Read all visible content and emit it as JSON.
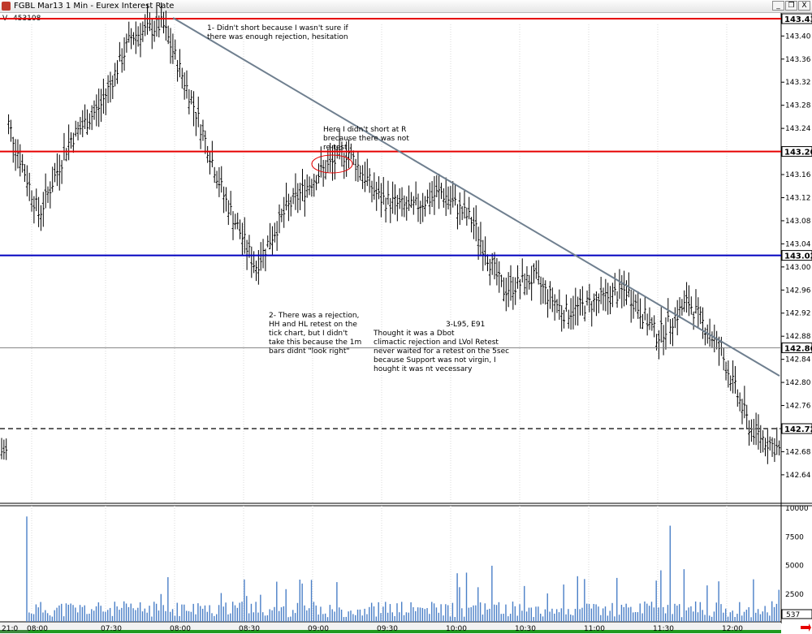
{
  "window": {
    "title": "FGBL Mar13 1 Min - Eurex Interest Rate",
    "minimize": "_",
    "restore": "❐",
    "close": "X",
    "indicator_label": "V",
    "indicator_value": "453108"
  },
  "price_axis": {
    "ticks": [
      "143.40",
      "143.36",
      "143.32",
      "143.28",
      "143.24",
      "143.16",
      "143.12",
      "143.08",
      "143.04",
      "143.00",
      "142.96",
      "142.92",
      "142.88",
      "142.84",
      "142.80",
      "142.76",
      "142.68",
      "142.64"
    ],
    "level_labels": [
      "143.43",
      "143.20",
      "143.02",
      "142.86",
      "142.72"
    ]
  },
  "volume_axis": {
    "ticks": [
      "10000",
      "7500",
      "5000",
      "2500"
    ],
    "current": "537"
  },
  "time_axis": {
    "first": "21:0",
    "ticks": [
      "08:00",
      "07:30",
      "08:00",
      "08:30",
      "09:00",
      "09:30",
      "10:00",
      "10:30",
      "11:00",
      "11:30",
      "12:00"
    ]
  },
  "annotations": [
    "1- Didn't short because I wasn't sure if\nthere was enough rejection, hesitation",
    "Here I didn't short at R\nbrecause there was not\nre-test",
    "2- There was a rejection,\nHH and HL retest on the\ntick chart, but I didn't\ntake this because the 1m\nbars didnt \"look right\"",
    "3-L95, E91",
    "Thought it was a Dbot\nclimactic rejection and LVol Retest\nnever waited for a retest on the 5sec\nbecause Support was not virgin, I\nhought it was nt vecessary"
  ],
  "colors": {
    "resistance": "#e60000",
    "support": "#0000c0",
    "trendline": "#6f7f8f",
    "volume": "#4a7fc7",
    "bars": "#000000"
  },
  "chart_data": {
    "type": "line",
    "title": "",
    "xlabel": "",
    "ylabel": "",
    "ylim": [
      142.62,
      143.44
    ],
    "x": [
      "07:00",
      "07:15",
      "07:30",
      "07:45",
      "08:00",
      "08:05",
      "08:15",
      "08:30",
      "08:40",
      "08:50",
      "09:00",
      "09:10",
      "09:20",
      "09:30",
      "09:45",
      "10:00",
      "10:15",
      "10:30",
      "10:45",
      "11:00",
      "11:15",
      "11:30",
      "11:40",
      "11:50",
      "12:00",
      "12:15"
    ],
    "series": [
      {
        "name": "",
        "values": [
          143.25,
          143.09,
          143.22,
          143.28,
          143.4,
          143.42,
          143.28,
          143.12,
          143.0,
          143.1,
          143.16,
          143.2,
          143.12,
          143.1,
          143.13,
          143.08,
          142.96,
          142.98,
          142.92,
          142.94,
          142.96,
          142.88,
          142.94,
          142.86,
          142.72,
          142.68
        ]
      }
    ],
    "levels": [
      {
        "name": "",
        "value": 143.43
      },
      {
        "name": "",
        "value": 143.2
      },
      {
        "name": "",
        "value": 143.02
      },
      {
        "name": "",
        "value": 142.86
      },
      {
        "name": "",
        "value": 142.72
      }
    ],
    "volume_ylim": [
      0,
      10000
    ]
  }
}
